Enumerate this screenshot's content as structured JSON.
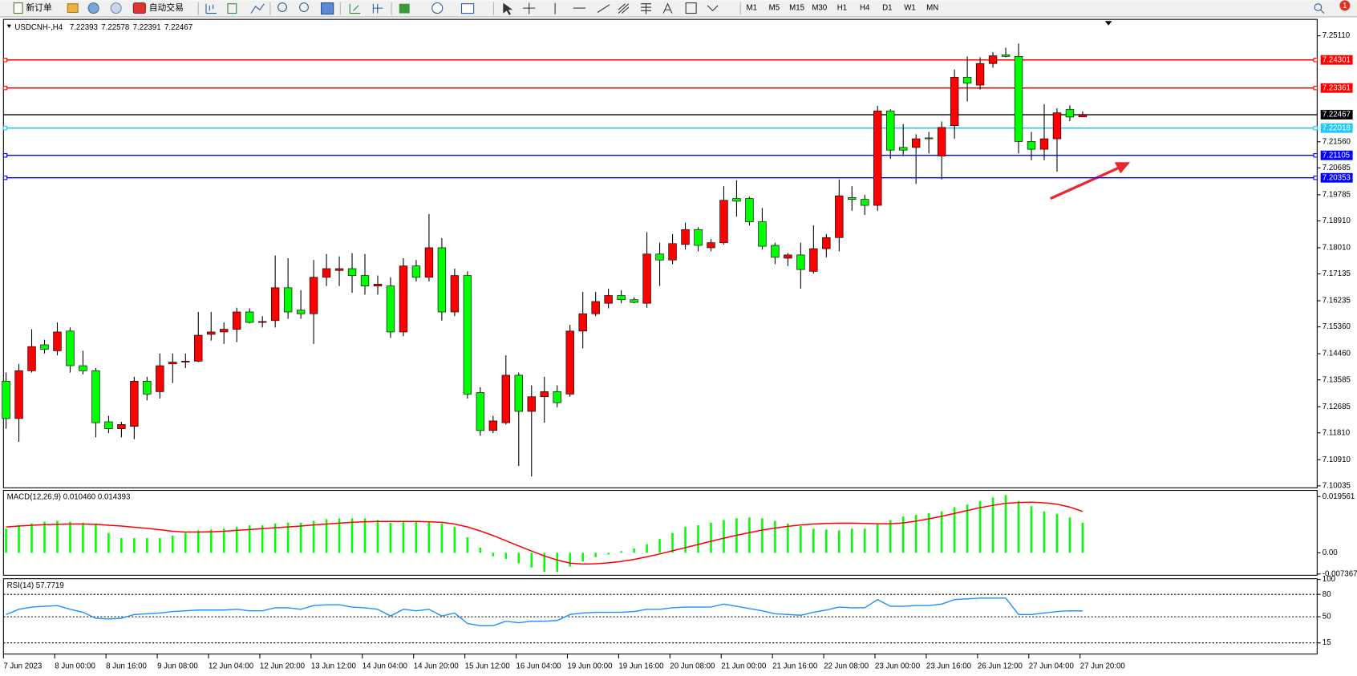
{
  "toolbar": {
    "buttons": [
      "新订单",
      "自动交易"
    ],
    "timeframes": [
      "M1",
      "M5",
      "M15",
      "M30",
      "H1",
      "H4",
      "D1",
      "W1",
      "MN"
    ],
    "badge": 1
  },
  "chart_data": [
    {
      "type": "candlestick",
      "title": "USDCNH-,H4",
      "categories": [
        "7 Jun 2023",
        null,
        null,
        null,
        "8 Jun 00:00",
        null,
        null,
        null,
        "8 Jun 16:00",
        null,
        null,
        null,
        "9 Jun 08:00",
        null,
        null,
        null,
        "12 Jun 04:00",
        null,
        null,
        null,
        "12 Jun 20:00",
        null,
        null,
        null,
        "13 Jun 12:00",
        null,
        null,
        null,
        "14 Jun 04:00",
        null,
        null,
        null,
        "14 Jun 20:00",
        null,
        null,
        null,
        "15 Jun 12:00",
        null,
        null,
        null,
        "16 Jun 04:00",
        null,
        null,
        null,
        "19 Jun 00:00",
        null,
        null,
        null,
        "19 Jun 16:00",
        null,
        null,
        null,
        "20 Jun 08:00",
        null,
        null,
        null,
        "21 Jun 00:00",
        null,
        null,
        null,
        "21 Jun 16:00",
        null,
        null,
        null,
        "22 Jun 08:00",
        null,
        null,
        null,
        "23 Jun 00:00",
        null,
        null,
        null,
        "23 Jun 16:00",
        null,
        null,
        null,
        "26 Jun 12:00",
        null,
        null,
        null,
        "27 Jun 04:00",
        null,
        null,
        null,
        "27 Jun 20:00"
      ],
      "open": [
        7.1354,
        7.1229,
        7.1389,
        7.1476,
        7.1456,
        7.1522,
        7.1406,
        7.1389,
        7.1218,
        7.1195,
        7.1203,
        7.1354,
        7.1319,
        7.1412,
        7.1418,
        7.1421,
        7.1511,
        7.1519,
        7.1528,
        7.1586,
        7.1551,
        7.1557,
        7.1667,
        7.1592,
        7.158,
        7.1702,
        7.1725,
        7.1731,
        7.1708,
        7.1673,
        7.1673,
        7.1519,
        7.174,
        7.1702,
        7.1801,
        7.1586,
        7.1708,
        7.1316,
        7.1189,
        7.1215,
        7.1374,
        7.1253,
        7.1302,
        7.1319,
        7.1311,
        7.1522,
        7.158,
        7.1615,
        7.1641,
        7.1627,
        7.1615,
        7.178,
        7.176,
        7.1812,
        7.1862,
        7.1801,
        7.1818,
        7.1966,
        7.1966,
        7.1888,
        7.1809,
        7.1766,
        7.1777,
        7.1722,
        7.1798,
        7.1835,
        7.1969,
        7.1963,
        7.1943,
        7.2259,
        7.2137,
        7.2137,
        7.2169,
        7.2108,
        7.221,
        7.2372,
        7.2346,
        7.2418,
        7.2447,
        7.2442,
        7.2157,
        7.2131,
        7.2166,
        7.2264,
        7.22393
      ],
      "high": [
        7.1383,
        7.1412,
        7.1528,
        7.1493,
        7.1551,
        7.1534,
        7.1456,
        7.1398,
        7.1238,
        7.1218,
        7.1369,
        7.1369,
        7.1447,
        7.1447,
        7.1447,
        7.1586,
        7.1586,
        7.1551,
        7.16,
        7.1598,
        7.1572,
        7.1775,
        7.1766,
        7.1659,
        7.176,
        7.178,
        7.1772,
        7.1783,
        7.178,
        7.1708,
        7.1702,
        7.1766,
        7.176,
        7.1914,
        7.1833,
        7.1731,
        7.1722,
        7.1334,
        7.1238,
        7.1441,
        7.1383,
        7.134,
        7.1369,
        7.134,
        7.1543,
        7.1653,
        7.1653,
        7.1664,
        7.1659,
        7.1635,
        7.1853,
        7.1818,
        7.1847,
        7.1885,
        7.187,
        7.183,
        7.2007,
        7.2027,
        7.1972,
        7.1934,
        7.1818,
        7.1783,
        7.1818,
        7.1876,
        7.1847,
        7.203,
        7.2007,
        7.1978,
        7.2276,
        7.2265,
        7.2215,
        7.2181,
        7.2189,
        7.2224,
        7.2398,
        7.2442,
        7.2439,
        7.2456,
        7.2471,
        7.2485,
        7.2189,
        7.2282,
        7.2268,
        7.2278,
        7.22578
      ],
      "low": [
        7.1195,
        7.1151,
        7.1383,
        7.1447,
        7.1441,
        7.1383,
        7.1377,
        7.1166,
        7.118,
        7.1166,
        7.116,
        7.129,
        7.1296,
        7.1348,
        7.1398,
        7.1418,
        7.149,
        7.1479,
        7.1485,
        7.1548,
        7.1534,
        7.1534,
        7.1563,
        7.1563,
        7.1479,
        7.1673,
        7.1673,
        7.165,
        7.1644,
        7.1644,
        7.1499,
        7.1505,
        7.1688,
        7.1688,
        7.1557,
        7.1572,
        7.1296,
        7.1171,
        7.118,
        7.1209,
        7.107,
        7.1035,
        7.1215,
        7.1267,
        7.1302,
        7.1464,
        7.1572,
        7.1598,
        7.1615,
        7.1615,
        7.16,
        7.1673,
        7.1746,
        7.1795,
        7.1789,
        7.1789,
        7.1812,
        7.1905,
        7.1876,
        7.1795,
        7.1746,
        7.174,
        7.1664,
        7.1714,
        7.1769,
        7.1789,
        7.1925,
        7.1911,
        7.1925,
        7.2099,
        7.2108,
        7.2015,
        7.2117,
        7.203,
        7.2166,
        7.2291,
        7.2331,
        7.2404,
        7.2439,
        7.2117,
        7.2094,
        7.2094,
        7.2056,
        7.2225,
        7.22391
      ],
      "close": [
        7.1229,
        7.1389,
        7.147,
        7.1461,
        7.1519,
        7.1406,
        7.1389,
        7.1215,
        7.1195,
        7.1209,
        7.1354,
        7.1311,
        7.1406,
        7.1418,
        7.1421,
        7.1508,
        7.1519,
        7.1528,
        7.1586,
        7.1551,
        7.1554,
        7.1667,
        7.1586,
        7.158,
        7.1702,
        7.1731,
        7.1731,
        7.1708,
        7.1673,
        7.1679,
        7.1519,
        7.174,
        7.1702,
        7.1801,
        7.1586,
        7.1708,
        7.1311,
        7.1189,
        7.1221,
        7.1374,
        7.1253,
        7.1302,
        7.1319,
        7.1282,
        7.1522,
        7.158,
        7.1621,
        7.1641,
        7.1627,
        7.1618,
        7.178,
        7.176,
        7.1815,
        7.1862,
        7.1809,
        7.1818,
        7.196,
        7.1957,
        7.1888,
        7.1806,
        7.1769,
        7.1777,
        7.1728,
        7.1798,
        7.1835,
        7.1975,
        7.1963,
        7.1943,
        7.2259,
        7.2128,
        7.2128,
        7.2166,
        7.2166,
        7.2204,
        7.2372,
        7.2352,
        7.2418,
        7.2444,
        7.2442,
        7.2157,
        7.2131,
        7.2166,
        7.2253,
        7.2239,
        7.22467
      ],
      "up_color": "#ff0000",
      "down_color": "#00ff00",
      "ylim": [
        7.0997,
        7.2566
      ],
      "yticks": [
        {
          "value": 7.2511,
          "label": "7.25110"
        },
        {
          "value": 7.2156,
          "label": "7.21560"
        },
        {
          "value": 7.20685,
          "label": "7.20685"
        },
        {
          "value": 7.19785,
          "label": "7.19785"
        },
        {
          "value": 7.1891,
          "label": "7.18910"
        },
        {
          "value": 7.1801,
          "label": "7.18010"
        },
        {
          "value": 7.17135,
          "label": "7.17135"
        },
        {
          "value": 7.16235,
          "label": "7.16235"
        },
        {
          "value": 7.1536,
          "label": "7.15360"
        },
        {
          "value": 7.1446,
          "label": "7.14460"
        },
        {
          "value": 7.13585,
          "label": "7.13585"
        },
        {
          "value": 7.12685,
          "label": "7.12685"
        },
        {
          "value": 7.1181,
          "label": "7.11810"
        },
        {
          "value": 7.1091,
          "label": "7.10910"
        },
        {
          "value": 7.10035,
          "label": "7.10035"
        }
      ],
      "levels": [
        {
          "value": 7.24301,
          "color": "#ff0000"
        },
        {
          "value": 7.23361,
          "color": "#ff0000"
        },
        {
          "value": 7.22467,
          "color": "#000000"
        },
        {
          "value": 7.22018,
          "color": "#1ec8ff"
        },
        {
          "value": 7.21105,
          "color": "#0000ff"
        },
        {
          "value": 7.20353,
          "color": "#0000ff"
        }
      ]
    },
    {
      "type": "macd",
      "title": "MACD(12,26,9) 0.010460 0.014393",
      "histogram": [
        0.0084,
        0.0096,
        0.0102,
        0.0108,
        0.0111,
        0.0108,
        0.0105,
        0.0102,
        0.0069,
        0.0051,
        0.0051,
        0.0051,
        0.0051,
        0.006,
        0.0069,
        0.0078,
        0.0081,
        0.0084,
        0.009,
        0.0096,
        0.0096,
        0.0102,
        0.0105,
        0.0105,
        0.0111,
        0.0117,
        0.012,
        0.012,
        0.012,
        0.0114,
        0.0105,
        0.0108,
        0.0108,
        0.0108,
        0.0102,
        0.009,
        0.0054,
        0.0018,
        -0.0012,
        -0.0021,
        -0.0036,
        -0.0051,
        -0.0066,
        -0.0066,
        -0.0048,
        -0.003,
        -0.0015,
        -0.0006,
        0.0006,
        0.0015,
        0.003,
        0.0048,
        0.0069,
        0.009,
        0.0096,
        0.0105,
        0.0114,
        0.012,
        0.0123,
        0.012,
        0.0111,
        0.0102,
        0.0093,
        0.0084,
        0.0081,
        0.0078,
        0.0084,
        0.0084,
        0.0099,
        0.0114,
        0.0126,
        0.0132,
        0.0138,
        0.0144,
        0.0159,
        0.0168,
        0.018,
        0.0192,
        0.0201,
        0.018,
        0.0162,
        0.0144,
        0.0135,
        0.0123,
        0.01046
      ],
      "signal": [
        0.009,
        0.0093,
        0.0096,
        0.0098,
        0.0099,
        0.01,
        0.01,
        0.0099,
        0.0096,
        0.0093,
        0.0089,
        0.0085,
        0.008,
        0.0075,
        0.0072,
        0.0072,
        0.0073,
        0.0075,
        0.0078,
        0.0081,
        0.0084,
        0.0087,
        0.009,
        0.0093,
        0.0097,
        0.01,
        0.0103,
        0.0106,
        0.0108,
        0.0109,
        0.0109,
        0.0109,
        0.0109,
        0.0108,
        0.0106,
        0.01,
        0.009,
        0.0076,
        0.006,
        0.0042,
        0.0024,
        0.0006,
        -0.0011,
        -0.0025,
        -0.0036,
        -0.0039,
        -0.0038,
        -0.0035,
        -0.003,
        -0.0023,
        -0.0014,
        -0.0004,
        0.0007,
        0.0018,
        0.0029,
        0.004,
        0.0051,
        0.0061,
        0.007,
        0.0079,
        0.0086,
        0.0092,
        0.0097,
        0.01,
        0.0102,
        0.0103,
        0.0103,
        0.0102,
        0.0101,
        0.0101,
        0.0104,
        0.011,
        0.0118,
        0.0127,
        0.0137,
        0.0147,
        0.0157,
        0.0165,
        0.0172,
        0.0175,
        0.0176,
        0.0174,
        0.0169,
        0.0159,
        0.014393
      ],
      "histogram_color": "#00ff00",
      "signal_color": "#ff0000",
      "ylim": [
        -0.0078,
        0.0217
      ],
      "yticks": [
        0.019561,
        {
          "value": 0,
          "label": "0.00"
        },
        -0.007367
      ]
    },
    {
      "type": "rsi",
      "title": "RSI(14) 57.7719",
      "values": [
        53,
        60,
        63,
        64,
        65,
        60,
        56,
        48,
        47,
        48,
        53,
        54,
        55,
        57,
        58,
        59,
        59,
        59,
        60,
        58,
        58,
        62,
        62,
        60,
        65,
        66,
        66,
        63,
        62,
        60,
        51,
        60,
        58,
        60,
        51,
        55,
        41,
        38,
        38,
        44,
        42,
        44,
        44,
        45,
        53,
        55,
        56,
        56,
        56,
        57,
        60,
        60,
        62,
        63,
        63,
        63,
        67,
        64,
        61,
        58,
        54,
        53,
        52,
        56,
        59,
        63,
        62,
        62,
        73,
        64,
        64,
        65,
        65,
        67,
        73,
        74,
        75,
        75,
        75,
        53,
        53,
        55,
        57,
        58,
        57.7719
      ],
      "color": "#1e90ff",
      "ylim": [
        0,
        101
      ],
      "yticks": [
        100,
        80,
        50,
        15
      ],
      "levels": [
        80,
        50,
        15
      ]
    }
  ]
}
